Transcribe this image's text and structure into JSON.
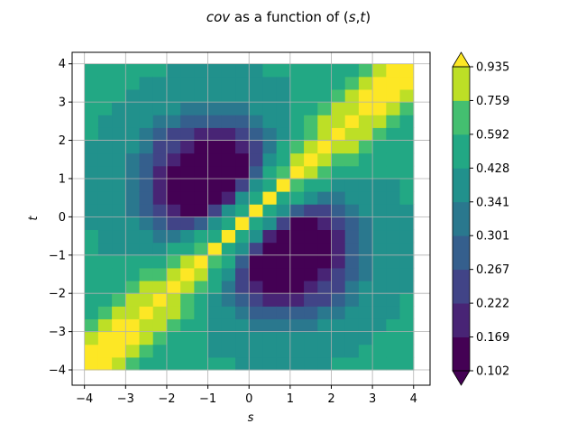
{
  "chart_data": {
    "type": "heatmap",
    "title_parts": [
      "cov",
      " as a function of (",
      "s",
      ",",
      "t",
      ")"
    ],
    "xlabel": "s",
    "ylabel": "t",
    "xlim": [
      -4.3,
      4.4
    ],
    "ylim": [
      -4.4,
      4.3
    ],
    "xticks": [
      -4,
      -3,
      -2,
      -1,
      0,
      1,
      2,
      3,
      4
    ],
    "yticks": [
      -4,
      -3,
      -2,
      -1,
      0,
      1,
      2,
      3,
      4
    ],
    "grid": true,
    "grid_extent": [
      -4,
      4
    ],
    "grid_cells": 24,
    "colorbar": {
      "levels": [
        0.102,
        0.169,
        0.222,
        0.267,
        0.301,
        0.341,
        0.428,
        0.592,
        0.759,
        0.935
      ],
      "colors": [
        "#440154",
        "#482475",
        "#414487",
        "#355f8d",
        "#2a788e",
        "#21918c",
        "#22a884",
        "#44bf70",
        "#bddf26",
        "#fde725"
      ],
      "extend": "both"
    }
  }
}
